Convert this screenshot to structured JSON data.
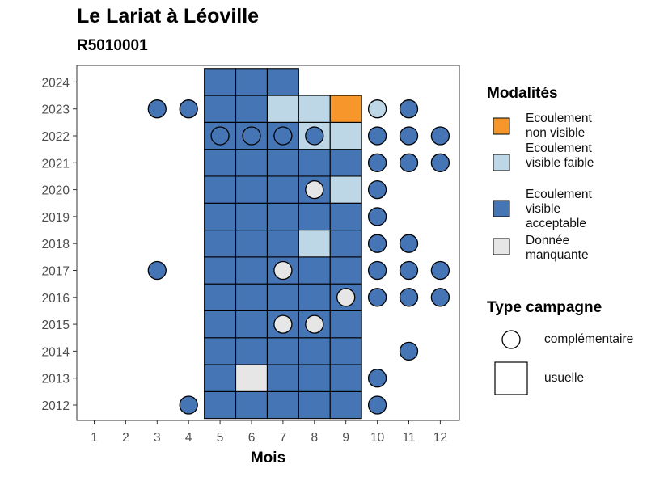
{
  "chart_data": {
    "type": "heatmap",
    "title": "Le Lariat à Léoville",
    "subtitle": "R5010001",
    "xlabel": "Mois",
    "ylabel": "",
    "x": [
      1,
      2,
      3,
      4,
      5,
      6,
      7,
      8,
      9,
      10,
      11,
      12
    ],
    "y": [
      2012,
      2013,
      2014,
      2015,
      2016,
      2017,
      2018,
      2019,
      2020,
      2021,
      2022,
      2023,
      2024
    ],
    "legend": {
      "modalites_title": "Modalités",
      "modalites": [
        {
          "key": "nv",
          "label": "Ecoulement non visible",
          "color": "#f7962b"
        },
        {
          "key": "vf",
          "label": "Ecoulement visible faible",
          "color": "#bdd7e7"
        },
        {
          "key": "va",
          "label": "Ecoulement visible acceptable",
          "color": "#4575b4"
        },
        {
          "key": "dm",
          "label": "Donnée manquante",
          "color": "#e6e6e6"
        }
      ],
      "campagne_title": "Type campagne",
      "campagnes": [
        {
          "key": "comp",
          "label": "complémentaire"
        },
        {
          "key": "usu",
          "label": "usuelle"
        }
      ],
      "position": "right"
    },
    "squares": [
      {
        "year": 2012,
        "month": 5,
        "m": "va"
      },
      {
        "year": 2012,
        "month": 6,
        "m": "va"
      },
      {
        "year": 2012,
        "month": 7,
        "m": "va"
      },
      {
        "year": 2012,
        "month": 8,
        "m": "va"
      },
      {
        "year": 2012,
        "month": 9,
        "m": "va"
      },
      {
        "year": 2013,
        "month": 5,
        "m": "va"
      },
      {
        "year": 2013,
        "month": 6,
        "m": "dm"
      },
      {
        "year": 2013,
        "month": 7,
        "m": "va"
      },
      {
        "year": 2013,
        "month": 8,
        "m": "va"
      },
      {
        "year": 2013,
        "month": 9,
        "m": "va"
      },
      {
        "year": 2014,
        "month": 5,
        "m": "va"
      },
      {
        "year": 2014,
        "month": 6,
        "m": "va"
      },
      {
        "year": 2014,
        "month": 7,
        "m": "va"
      },
      {
        "year": 2014,
        "month": 8,
        "m": "va"
      },
      {
        "year": 2014,
        "month": 9,
        "m": "va"
      },
      {
        "year": 2015,
        "month": 5,
        "m": "va"
      },
      {
        "year": 2015,
        "month": 6,
        "m": "va"
      },
      {
        "year": 2015,
        "month": 7,
        "m": "va"
      },
      {
        "year": 2015,
        "month": 8,
        "m": "va"
      },
      {
        "year": 2015,
        "month": 9,
        "m": "va"
      },
      {
        "year": 2016,
        "month": 5,
        "m": "va"
      },
      {
        "year": 2016,
        "month": 6,
        "m": "va"
      },
      {
        "year": 2016,
        "month": 7,
        "m": "va"
      },
      {
        "year": 2016,
        "month": 8,
        "m": "va"
      },
      {
        "year": 2016,
        "month": 9,
        "m": "va"
      },
      {
        "year": 2017,
        "month": 5,
        "m": "va"
      },
      {
        "year": 2017,
        "month": 6,
        "m": "va"
      },
      {
        "year": 2017,
        "month": 7,
        "m": "va"
      },
      {
        "year": 2017,
        "month": 8,
        "m": "va"
      },
      {
        "year": 2017,
        "month": 9,
        "m": "va"
      },
      {
        "year": 2018,
        "month": 5,
        "m": "va"
      },
      {
        "year": 2018,
        "month": 6,
        "m": "va"
      },
      {
        "year": 2018,
        "month": 7,
        "m": "va"
      },
      {
        "year": 2018,
        "month": 8,
        "m": "vf"
      },
      {
        "year": 2018,
        "month": 9,
        "m": "va"
      },
      {
        "year": 2019,
        "month": 5,
        "m": "va"
      },
      {
        "year": 2019,
        "month": 6,
        "m": "va"
      },
      {
        "year": 2019,
        "month": 7,
        "m": "va"
      },
      {
        "year": 2019,
        "month": 8,
        "m": "va"
      },
      {
        "year": 2019,
        "month": 9,
        "m": "va"
      },
      {
        "year": 2020,
        "month": 5,
        "m": "va"
      },
      {
        "year": 2020,
        "month": 6,
        "m": "va"
      },
      {
        "year": 2020,
        "month": 7,
        "m": "va"
      },
      {
        "year": 2020,
        "month": 8,
        "m": "va"
      },
      {
        "year": 2020,
        "month": 9,
        "m": "vf"
      },
      {
        "year": 2021,
        "month": 5,
        "m": "va"
      },
      {
        "year": 2021,
        "month": 6,
        "m": "va"
      },
      {
        "year": 2021,
        "month": 7,
        "m": "va"
      },
      {
        "year": 2021,
        "month": 8,
        "m": "va"
      },
      {
        "year": 2021,
        "month": 9,
        "m": "va"
      },
      {
        "year": 2022,
        "month": 5,
        "m": "va"
      },
      {
        "year": 2022,
        "month": 6,
        "m": "va"
      },
      {
        "year": 2022,
        "month": 7,
        "m": "va"
      },
      {
        "year": 2022,
        "month": 8,
        "m": "vf"
      },
      {
        "year": 2022,
        "month": 9,
        "m": "vf"
      },
      {
        "year": 2023,
        "month": 5,
        "m": "va"
      },
      {
        "year": 2023,
        "month": 6,
        "m": "va"
      },
      {
        "year": 2023,
        "month": 7,
        "m": "vf"
      },
      {
        "year": 2023,
        "month": 8,
        "m": "vf"
      },
      {
        "year": 2023,
        "month": 9,
        "m": "nv"
      },
      {
        "year": 2024,
        "month": 5,
        "m": "va"
      },
      {
        "year": 2024,
        "month": 6,
        "m": "va"
      },
      {
        "year": 2024,
        "month": 7,
        "m": "va"
      }
    ],
    "circles": [
      {
        "year": 2012,
        "month": 4,
        "m": "va"
      },
      {
        "year": 2012,
        "month": 10,
        "m": "va"
      },
      {
        "year": 2013,
        "month": 10,
        "m": "va"
      },
      {
        "year": 2014,
        "month": 11,
        "m": "va"
      },
      {
        "year": 2015,
        "month": 7,
        "m": "dm"
      },
      {
        "year": 2015,
        "month": 8,
        "m": "dm"
      },
      {
        "year": 2016,
        "month": 9,
        "m": "dm"
      },
      {
        "year": 2016,
        "month": 10,
        "m": "va"
      },
      {
        "year": 2016,
        "month": 11,
        "m": "va"
      },
      {
        "year": 2016,
        "month": 12,
        "m": "va"
      },
      {
        "year": 2017,
        "month": 3,
        "m": "va"
      },
      {
        "year": 2017,
        "month": 7,
        "m": "dm"
      },
      {
        "year": 2017,
        "month": 10,
        "m": "va"
      },
      {
        "year": 2017,
        "month": 11,
        "m": "va"
      },
      {
        "year": 2017,
        "month": 12,
        "m": "va"
      },
      {
        "year": 2018,
        "month": 10,
        "m": "va"
      },
      {
        "year": 2018,
        "month": 11,
        "m": "va"
      },
      {
        "year": 2019,
        "month": 10,
        "m": "va"
      },
      {
        "year": 2020,
        "month": 8,
        "m": "dm"
      },
      {
        "year": 2020,
        "month": 10,
        "m": "va"
      },
      {
        "year": 2021,
        "month": 10,
        "m": "va"
      },
      {
        "year": 2021,
        "month": 11,
        "m": "va"
      },
      {
        "year": 2021,
        "month": 12,
        "m": "va"
      },
      {
        "year": 2022,
        "month": 5,
        "m": "va"
      },
      {
        "year": 2022,
        "month": 6,
        "m": "va"
      },
      {
        "year": 2022,
        "month": 7,
        "m": "va"
      },
      {
        "year": 2022,
        "month": 8,
        "m": "va"
      },
      {
        "year": 2022,
        "month": 10,
        "m": "va"
      },
      {
        "year": 2022,
        "month": 11,
        "m": "va"
      },
      {
        "year": 2022,
        "month": 12,
        "m": "va"
      },
      {
        "year": 2023,
        "month": 3,
        "m": "va"
      },
      {
        "year": 2023,
        "month": 4,
        "m": "va"
      },
      {
        "year": 2023,
        "month": 10,
        "m": "vf"
      },
      {
        "year": 2023,
        "month": 11,
        "m": "va"
      }
    ],
    "grid": false
  }
}
